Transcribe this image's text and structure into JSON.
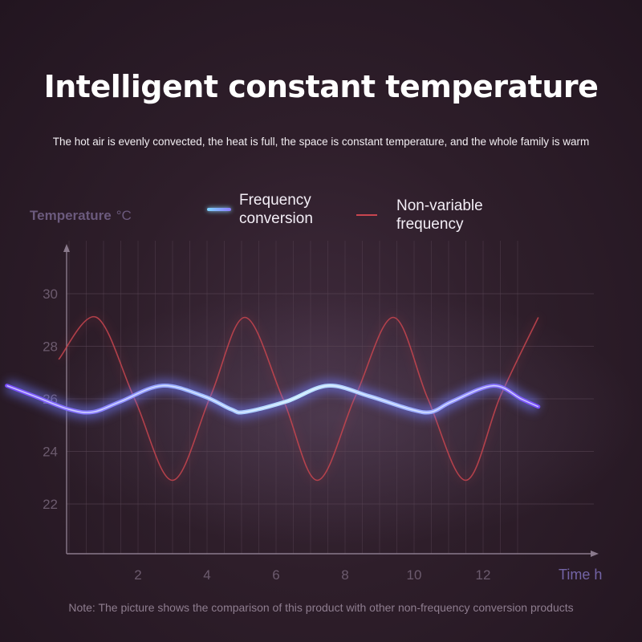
{
  "title": "Intelligent constant temperature",
  "subtitle": "The hot air is evenly convected, the heat is full, the space is constant temperature, and the whole family is warm",
  "note": "Note: The picture shows the comparison of this product with other non-frequency conversion products",
  "colors": {
    "frequency_line": "#a9c8ff",
    "frequency_glow": "#6f7cff",
    "non_variable_line": "#c8454f",
    "axis": "#8a7a8c",
    "grid": "#5a4656"
  },
  "chart_data": {
    "type": "line",
    "title": "",
    "ylabel": "Temperature",
    "ylabel_unit": "°C",
    "xlabel": "Time h",
    "ylim": [
      20,
      32
    ],
    "xlim": [
      -1.8,
      13.6
    ],
    "yticks": [
      22,
      24,
      26,
      28,
      30
    ],
    "xticks": [
      2,
      4,
      6,
      8,
      10,
      12
    ],
    "grid": true,
    "legend_position": "top",
    "series": [
      {
        "name": "Frequency\nconversion",
        "x": [
          -1.8,
          -1,
          0,
          0.7,
          1.5,
          2.7,
          3.9,
          4.7,
          5.1,
          6.3,
          7.5,
          8.7,
          9.9,
          10.5,
          11.1,
          12.3,
          13.1,
          13.6
        ],
        "y": [
          26.5,
          26.1,
          25.6,
          25.5,
          25.9,
          26.5,
          26.1,
          25.6,
          25.5,
          25.9,
          26.5,
          26.1,
          25.6,
          25.5,
          25.9,
          26.5,
          26.0,
          25.7
        ]
      },
      {
        "name": "Non-variable\nfrequency",
        "x": [
          -0.3,
          0.8,
          1.9,
          3.0,
          4.1,
          5.1,
          6.2,
          7.2,
          8.3,
          9.4,
          10.4,
          11.5,
          12.5,
          13.6
        ],
        "y": [
          27.5,
          29.1,
          26.0,
          22.9,
          26.1,
          29.1,
          26.0,
          22.9,
          26.1,
          29.1,
          26.0,
          22.9,
          26.1,
          29.1
        ]
      }
    ]
  }
}
